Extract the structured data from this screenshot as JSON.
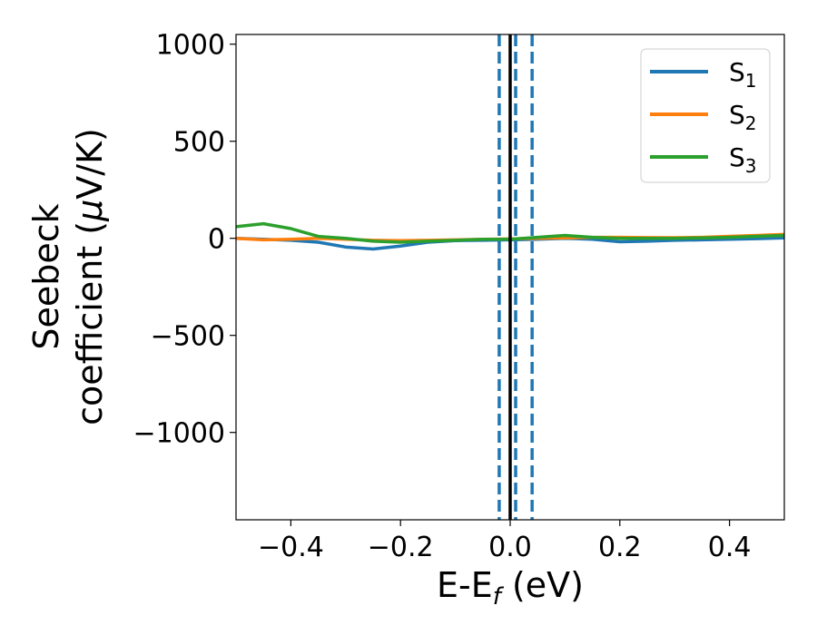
{
  "chart_data": {
    "type": "line",
    "xlabel": "E-E",
    "xlabel_sub": "f",
    "xlabel_unit": " (eV)",
    "ylabel_line1": "Seebeck",
    "ylabel_line2": "coefficient  (",
    "ylabel_mu": "μ",
    "ylabel_unit": "V/K)",
    "xlim": [
      -0.5,
      0.5
    ],
    "ylim": [
      -1450,
      1050
    ],
    "xticks": [
      -0.4,
      -0.2,
      0.0,
      0.2,
      0.4
    ],
    "xtick_labels": [
      "−0.4",
      "−0.2",
      "0.0",
      "0.2",
      "0.4"
    ],
    "yticks": [
      1000,
      500,
      0,
      -500,
      -1000
    ],
    "ytick_labels": [
      "1000",
      "500",
      "0",
      "−500",
      "−1000"
    ],
    "legend_position": "top-right",
    "vlines": [
      {
        "x": 0.0,
        "style": "solid",
        "color": "#000000"
      },
      {
        "x": -0.02,
        "style": "dashed",
        "color": "#1f77b4"
      },
      {
        "x": 0.01,
        "style": "dashed",
        "color": "#1f77b4"
      },
      {
        "x": 0.04,
        "style": "dashed",
        "color": "#1f77b4"
      }
    ],
    "series": [
      {
        "name": "S",
        "sub": "1",
        "color": "#1f77b4",
        "x": [
          -0.5,
          -0.45,
          -0.4,
          -0.35,
          -0.3,
          -0.25,
          -0.2,
          -0.15,
          -0.1,
          -0.05,
          0.0,
          0.05,
          0.1,
          0.15,
          0.2,
          0.25,
          0.3,
          0.35,
          0.4,
          0.45,
          0.5
        ],
        "y": [
          0,
          -5,
          -10,
          -20,
          -45,
          -55,
          -40,
          -20,
          -12,
          -10,
          -8,
          -5,
          0,
          -5,
          -18,
          -15,
          -10,
          -8,
          -5,
          -2,
          2
        ]
      },
      {
        "name": "S",
        "sub": "2",
        "color": "#ff7f0e",
        "x": [
          -0.5,
          -0.45,
          -0.4,
          -0.35,
          -0.3,
          -0.25,
          -0.2,
          -0.15,
          -0.1,
          -0.05,
          0.0,
          0.05,
          0.1,
          0.15,
          0.2,
          0.25,
          0.3,
          0.35,
          0.4,
          0.45,
          0.5
        ],
        "y": [
          0,
          -8,
          -5,
          0,
          -5,
          -10,
          -12,
          -10,
          -8,
          -5,
          -3,
          0,
          2,
          5,
          5,
          4,
          3,
          5,
          10,
          15,
          20
        ]
      },
      {
        "name": "S",
        "sub": "3",
        "color": "#2ca02c",
        "x": [
          -0.5,
          -0.45,
          -0.4,
          -0.35,
          -0.3,
          -0.25,
          -0.2,
          -0.15,
          -0.1,
          -0.05,
          0.0,
          0.05,
          0.1,
          0.15,
          0.2,
          0.25,
          0.3,
          0.35,
          0.4,
          0.45,
          0.5
        ],
        "y": [
          60,
          75,
          50,
          10,
          0,
          -15,
          -20,
          -15,
          -10,
          -5,
          -5,
          5,
          15,
          5,
          0,
          0,
          0,
          2,
          5,
          10,
          15
        ]
      }
    ]
  }
}
